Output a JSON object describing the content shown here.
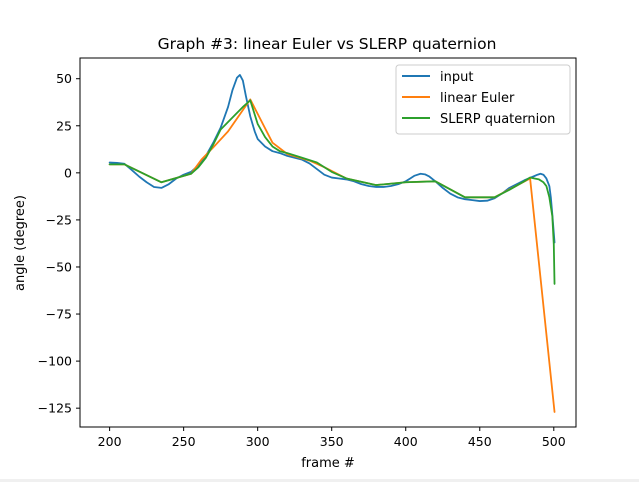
{
  "chart_data": {
    "type": "line",
    "title": "Graph #3: linear Euler vs SLERP quaternion",
    "xlabel": "frame #",
    "ylabel": "angle (degree)",
    "xlim": [
      180,
      515
    ],
    "ylim": [
      -135,
      61
    ],
    "xticks": [
      200,
      250,
      300,
      350,
      400,
      450,
      500
    ],
    "yticks": [
      50,
      25,
      0,
      -25,
      -50,
      -75,
      -100,
      -125
    ],
    "xtick_labels": [
      "200",
      "250",
      "300",
      "350",
      "400",
      "450",
      "500"
    ],
    "ytick_labels": [
      "50",
      "25",
      "0",
      "−25",
      "−50",
      "−75",
      "−100",
      "−125"
    ],
    "grid": false,
    "legend_position": "top-right",
    "series": [
      {
        "name": "input",
        "color": "#1f77b4",
        "x": [
          200,
          205,
          210,
          215,
          220,
          225,
          230,
          235,
          240,
          245,
          250,
          255,
          260,
          265,
          270,
          275,
          280,
          283,
          286,
          288,
          290,
          292,
          295,
          298,
          300,
          305,
          310,
          315,
          320,
          325,
          330,
          335,
          340,
          345,
          350,
          355,
          360,
          365,
          370,
          375,
          380,
          385,
          390,
          395,
          400,
          403,
          406,
          410,
          413,
          416,
          420,
          425,
          430,
          435,
          440,
          445,
          450,
          455,
          460,
          465,
          470,
          475,
          480,
          483,
          486,
          489,
          491,
          493,
          495,
          497,
          498,
          499,
          500,
          500.5
        ],
        "y": [
          5.5,
          5.3,
          4.8,
          1.5,
          -2,
          -5,
          -7.5,
          -8,
          -6,
          -3,
          -1,
          0.5,
          4,
          9,
          16,
          24,
          35,
          44,
          50.5,
          52,
          49,
          41,
          30,
          22,
          18,
          14,
          11.5,
          10.5,
          9,
          8,
          7,
          5,
          2,
          -1,
          -2.5,
          -3,
          -3.5,
          -4.5,
          -6,
          -7,
          -7.5,
          -7.5,
          -7,
          -6,
          -4.5,
          -3,
          -1.5,
          -0.5,
          -0.8,
          -2,
          -4.5,
          -8,
          -11,
          -13,
          -14,
          -14.5,
          -15,
          -14.8,
          -13.5,
          -11,
          -8,
          -6,
          -4,
          -3,
          -2,
          -1,
          -0.5,
          -1,
          -3,
          -7,
          -13,
          -22,
          -32,
          -37
        ]
      },
      {
        "name": "linear Euler",
        "color": "#ff7f0e",
        "x": [
          200,
          210,
          235,
          255,
          262,
          270,
          280,
          295,
          310,
          320,
          335,
          345,
          360,
          380,
          400,
          420,
          440,
          460,
          484,
          500.5
        ],
        "y": [
          4.5,
          4.5,
          -5,
          -0.5,
          7,
          13.5,
          22,
          39,
          16,
          10,
          6.5,
          3,
          -3,
          -6.5,
          -5,
          -4.5,
          -13,
          -13,
          -3,
          -127
        ]
      },
      {
        "name": "SLERP quaternion",
        "color": "#2ca02c",
        "x": [
          200,
          210,
          235,
          255,
          260,
          265,
          270,
          275,
          280,
          285,
          290,
          295,
          300,
          305,
          310,
          315,
          320,
          330,
          340,
          350,
          360,
          380,
          400,
          420,
          440,
          460,
          470,
          480,
          484,
          487,
          490,
          493,
          495,
          497,
          499,
          500,
          500.5
        ],
        "y": [
          4.5,
          4.5,
          -5,
          -0.5,
          3,
          8,
          15,
          23,
          27,
          31,
          35,
          38.5,
          26,
          19,
          14,
          11.5,
          10.5,
          8,
          5.5,
          0.5,
          -3,
          -6.5,
          -5,
          -4.5,
          -13,
          -13,
          -9,
          -4.5,
          -2.5,
          -3,
          -3.5,
          -5,
          -7,
          -13,
          -23,
          -38,
          -59
        ]
      }
    ]
  }
}
